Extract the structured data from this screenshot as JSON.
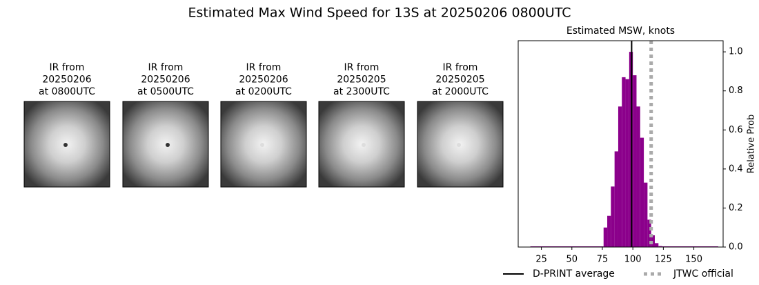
{
  "title": "Estimated Max Wind Speed for 13S at 20250206 0800UTC",
  "panels": [
    {
      "title_lines": [
        "IR from",
        "20250206",
        "at 0800UTC"
      ]
    },
    {
      "title_lines": [
        "IR from",
        "20250206",
        "at 0500UTC"
      ]
    },
    {
      "title_lines": [
        "IR from",
        "20250206",
        "at 0200UTC"
      ]
    },
    {
      "title_lines": [
        "IR from",
        "20250205",
        "at 2300UTC"
      ]
    },
    {
      "title_lines": [
        "IR from",
        "20250205",
        "at 2000UTC"
      ]
    }
  ],
  "chart_data": {
    "type": "histogram",
    "title": "Estimated MSW, knots",
    "ylabel": "Relative Prob",
    "bins": [
      16,
      76,
      79,
      82,
      85,
      88,
      91,
      94,
      97,
      100,
      103,
      106,
      109,
      112,
      115,
      118,
      121,
      124,
      170
    ],
    "values": [
      0.003,
      0.1,
      0.16,
      0.31,
      0.49,
      0.72,
      0.87,
      0.86,
      1.0,
      0.88,
      0.72,
      0.56,
      0.33,
      0.14,
      0.06,
      0.02,
      0.005,
      0.003
    ],
    "color": "#8b008b",
    "xlim": [
      6,
      174
    ],
    "xticks": [
      25,
      50,
      75,
      100,
      125,
      150
    ],
    "ylim": [
      0,
      1.057
    ],
    "yticks": [
      {
        "value": 0,
        "label": "0.0"
      },
      {
        "value": 0.2,
        "label": "0.2"
      },
      {
        "value": 0.4,
        "label": "0.4"
      },
      {
        "value": 0.6,
        "label": "0.6"
      },
      {
        "value": 0.8,
        "label": "0.8"
      },
      {
        "value": 1.0,
        "label": "1.0"
      }
    ],
    "lines": [
      {
        "name": "D-PRINT average",
        "x": 99,
        "color": "#000000",
        "dashed": false
      },
      {
        "name": "JTWC official",
        "x": 115,
        "color": "#aaaaaa",
        "dashed": true
      }
    ]
  }
}
